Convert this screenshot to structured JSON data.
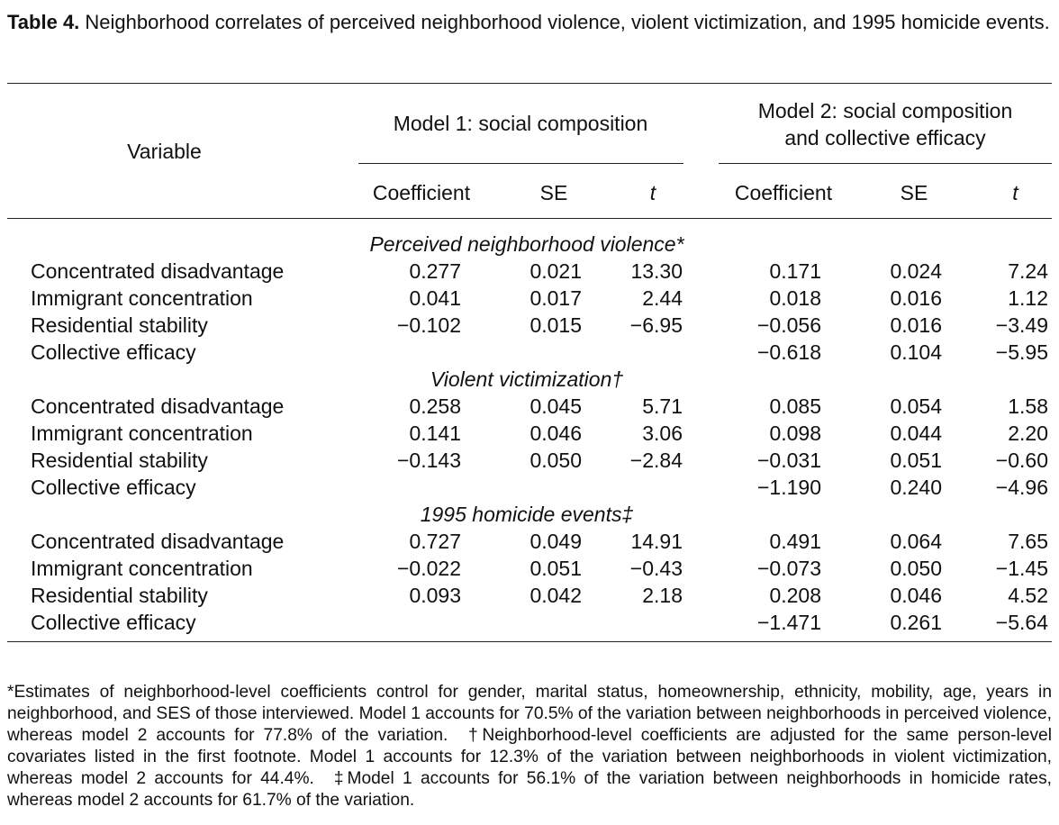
{
  "caption": {
    "label": "Table 4.",
    "text": " Neighborhood correlates of perceived neighborhood violence, violent victimization, and 1995 homicide events."
  },
  "header": {
    "variable": "Variable",
    "model1": "Model 1: social composition",
    "model2_line1": "Model 2: social composition",
    "model2_line2": "and collective efficacy",
    "cols": [
      "Coefficient",
      "SE",
      "t",
      "Coefficient",
      "SE",
      "t"
    ]
  },
  "sections": [
    {
      "title": "Perceived neighborhood violence*",
      "rows": [
        {
          "label": "Concentrated disadvantage",
          "values": [
            "0.277",
            "0.021",
            "13.30",
            "0.171",
            "0.024",
            "7.24"
          ]
        },
        {
          "label": "Immigrant concentration",
          "values": [
            "0.041",
            "0.017",
            "2.44",
            "0.018",
            "0.016",
            "1.12"
          ]
        },
        {
          "label": "Residential stability",
          "values": [
            "−0.102",
            "0.015",
            "−6.95",
            "−0.056",
            "0.016",
            "−3.49"
          ]
        },
        {
          "label": "Collective efficacy",
          "values": [
            "",
            "",
            "",
            "−0.618",
            "0.104",
            "−5.95"
          ]
        }
      ]
    },
    {
      "title": "Violent victimization†",
      "rows": [
        {
          "label": "Concentrated disadvantage",
          "values": [
            "0.258",
            "0.045",
            "5.71",
            "0.085",
            "0.054",
            "1.58"
          ]
        },
        {
          "label": "Immigrant concentration",
          "values": [
            "0.141",
            "0.046",
            "3.06",
            "0.098",
            "0.044",
            "2.20"
          ]
        },
        {
          "label": "Residential stability",
          "values": [
            "−0.143",
            "0.050",
            "−2.84",
            "−0.031",
            "0.051",
            "−0.60"
          ]
        },
        {
          "label": "Collective efficacy",
          "values": [
            "",
            "",
            "",
            "−1.190",
            "0.240",
            "−4.96"
          ]
        }
      ]
    },
    {
      "title": "1995 homicide events‡",
      "rows": [
        {
          "label": "Concentrated disadvantage",
          "values": [
            "0.727",
            "0.049",
            "14.91",
            "0.491",
            "0.064",
            "7.65"
          ]
        },
        {
          "label": "Immigrant concentration",
          "values": [
            "−0.022",
            "0.051",
            "−0.43",
            "−0.073",
            "0.050",
            "−1.45"
          ]
        },
        {
          "label": "Residential stability",
          "values": [
            "0.093",
            "0.042",
            "2.18",
            "0.208",
            "0.046",
            "4.52"
          ]
        },
        {
          "label": "Collective efficacy",
          "values": [
            "",
            "",
            "",
            "−1.471",
            "0.261",
            "−5.64"
          ]
        }
      ]
    }
  ],
  "footnotes": [
    "*Estimates of neighborhood-level coefficients control for gender, marital status, homeownership, ethnicity, mobility, age, years in neighborhood, and SES of those interviewed. Model 1 accounts for 70.5% of the variation between neighborhoods in perceived violence, whereas model 2 accounts for 77.8% of the variation.",
    "†Neighborhood-level coefficients are adjusted for the same person-level covariates listed in the first footnote. Model 1 accounts for 12.3% of the variation between neighborhoods in violent victimization, whereas model 2 accounts for 44.4%.",
    "‡Model 1 accounts for 56.1% of the variation between neighborhoods in homicide rates, whereas model 2 accounts for 61.7% of the variation."
  ]
}
